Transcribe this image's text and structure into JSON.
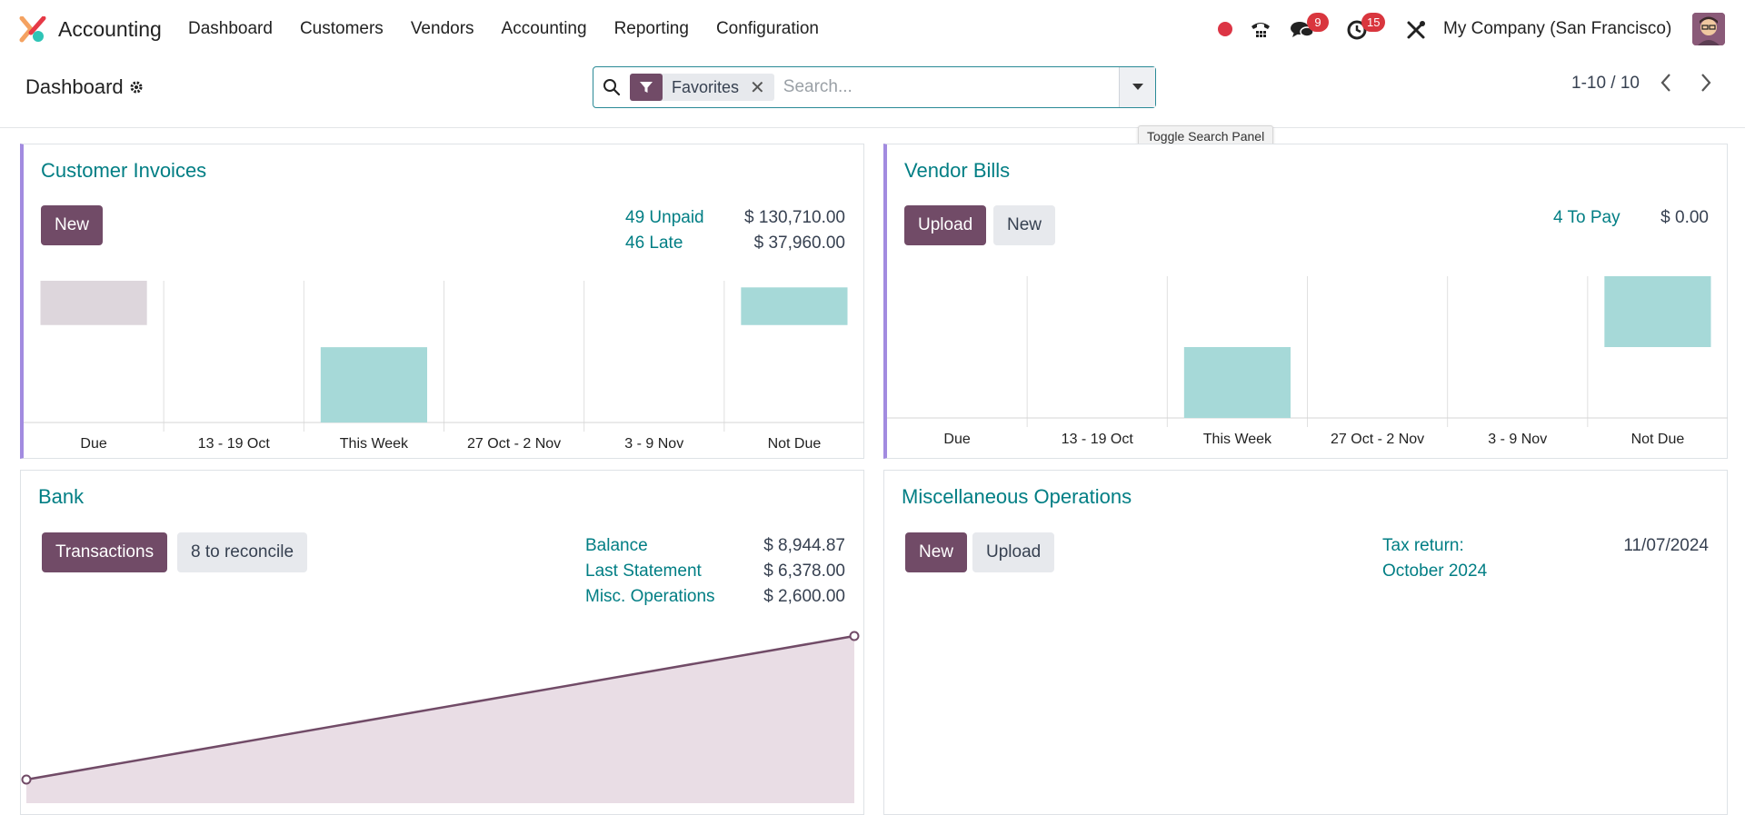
{
  "navbar": {
    "app_name": "Accounting",
    "menu": [
      "Dashboard",
      "Customers",
      "Vendors",
      "Accounting",
      "Reporting",
      "Configuration"
    ],
    "messages_badge": "9",
    "activities_badge": "15",
    "company": "My Company (San Francisco)"
  },
  "control_panel": {
    "breadcrumb": "Dashboard",
    "facet_label": "Favorites",
    "search_placeholder": "Search...",
    "pager": "1-10 / 10",
    "tooltip": "Toggle Search Panel"
  },
  "customer_invoices": {
    "title": "Customer Invoices",
    "new_button": "New",
    "stats": [
      {
        "label": "49 Unpaid",
        "value": "$ 130,710.00"
      },
      {
        "label": "46 Late",
        "value": "$ 37,960.00"
      }
    ]
  },
  "vendor_bills": {
    "title": "Vendor Bills",
    "upload_button": "Upload",
    "new_button": "New",
    "stats": [
      {
        "label": "4 To Pay",
        "value": "$ 0.00"
      }
    ]
  },
  "bank": {
    "title": "Bank",
    "transactions_button": "Transactions",
    "reconcile_button": "8 to reconcile",
    "stats": [
      {
        "label": "Balance",
        "value": "$ 8,944.87"
      },
      {
        "label": "Last Statement",
        "value": "$ 6,378.00"
      },
      {
        "label": "Misc. Operations",
        "value": "$ 2,600.00"
      }
    ]
  },
  "misc_operations": {
    "title": "Miscellaneous Operations",
    "new_button": "New",
    "upload_button": "Upload",
    "tax_return_label_1": "Tax return:",
    "tax_return_label_2": "October 2024",
    "tax_return_date": "11/07/2024"
  },
  "colors": {
    "primary": "#714b67",
    "link": "#017e84",
    "bar_teal": "#a6d9d8",
    "bar_grey": "#ddd6dc",
    "accent_border": "#a28be0"
  },
  "chart_data": [
    {
      "type": "bar",
      "chart": "customer_invoices",
      "categories": [
        "Due",
        "13 - 19 Oct",
        "This Week",
        "27 Oct - 2 Nov",
        "3 - 9 Nov",
        "Not Due"
      ],
      "values": [
        1.0,
        0,
        1.7,
        0,
        0,
        0.85
      ],
      "base": [
        2.2,
        0,
        0,
        0,
        0,
        2.2
      ],
      "colors": [
        "#ddd6dc",
        "#a6d9d8",
        "#a6d9d8",
        "#a6d9d8",
        "#a6d9d8",
        "#a6d9d8"
      ],
      "note": "relative heights only; values not printed"
    },
    {
      "type": "bar",
      "chart": "vendor_bills",
      "categories": [
        "Due",
        "13 - 19 Oct",
        "This Week",
        "27 Oct - 2 Nov",
        "3 - 9 Nov",
        "Not Due"
      ],
      "values": [
        0,
        0,
        2.0,
        0,
        0,
        2.0
      ],
      "base": [
        0,
        0,
        0,
        0,
        0,
        2.0
      ],
      "colors": [
        "#a6d9d8",
        "#a6d9d8",
        "#a6d9d8",
        "#a6d9d8",
        "#a6d9d8",
        "#a6d9d8"
      ]
    },
    {
      "type": "area",
      "chart": "bank",
      "x": [
        0,
        1
      ],
      "y": [
        0,
        1
      ],
      "color": "#714b67"
    }
  ]
}
